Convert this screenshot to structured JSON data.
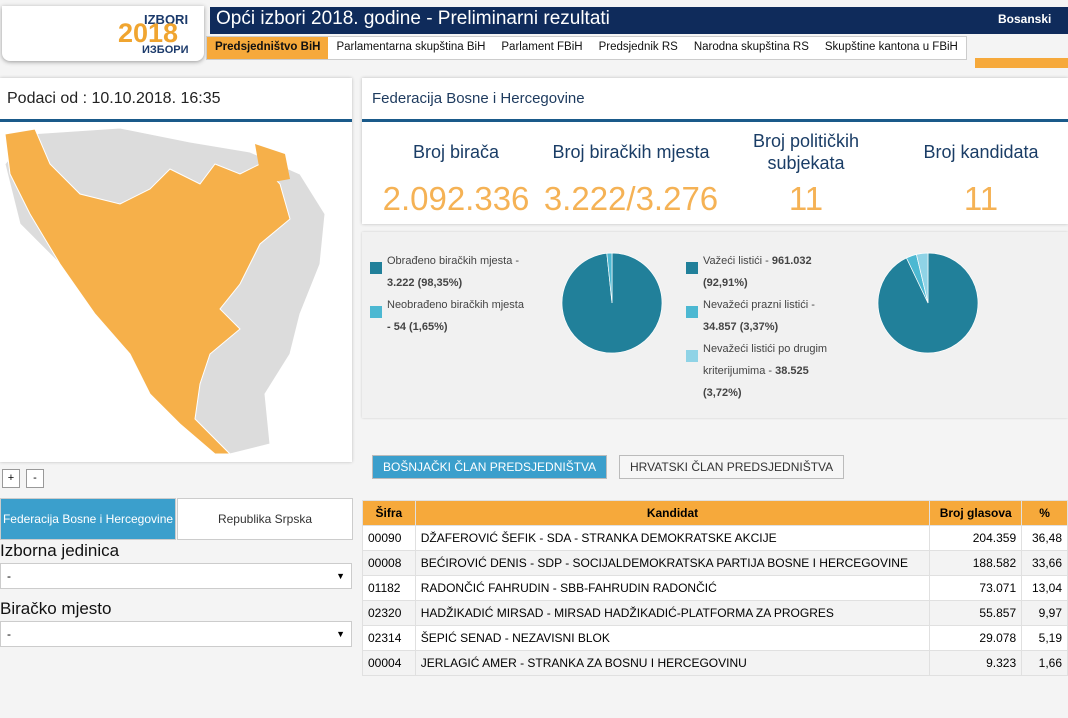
{
  "header": {
    "logo_top": "IZBORI",
    "logo_year": "2018",
    "logo_bottom": "ИЗБОРИ",
    "title": "Opći izbori 2018. godine - Preliminarni rezultati",
    "language": "Bosanski",
    "tabs": [
      "Predsjedništvo BiH",
      "Parlamentarna skupština BiH",
      "Parlament FBiH",
      "Predsjednik RS",
      "Narodna skupština RS",
      "Skupštine kantona u FBiH"
    ],
    "active_tab": 0
  },
  "sidebar": {
    "date": "Podaci od : 10.10.2018. 16:35",
    "zoom": [
      "+",
      "-"
    ],
    "entity_tabs": [
      "Federacija Bosne i Hercegovine",
      "Republika Srpska"
    ],
    "active_entity": 0,
    "fields": [
      {
        "label": "Izborna jedinica",
        "value": "-"
      },
      {
        "label": "Biračko mjesto",
        "value": "-"
      }
    ]
  },
  "summary": {
    "title": "Federacija Bosne i Hercegovine",
    "stats": [
      {
        "label": "Broj birača",
        "value": "2.092.336"
      },
      {
        "label": "Broj biračkih mjesta",
        "value": "3.222/3.276"
      },
      {
        "label": "Broj političkih subjekata",
        "value": "11"
      },
      {
        "label": "Broj kandidata",
        "value": "11"
      }
    ]
  },
  "pies": [
    {
      "slices": [
        {
          "label": "Obrađeno biračkih mjesta -",
          "value_label": "3.222 (98,35%)",
          "value": 98.35,
          "color": "#21809a"
        },
        {
          "label": "Neobrađeno biračkih mjesta",
          "value_label": "- 54 (1,65%)",
          "value": 1.65,
          "color": "#4cb8d2"
        }
      ]
    },
    {
      "slices": [
        {
          "label": "Važeći listići -",
          "value_label": "961.032 (92,91%)",
          "value": 92.91,
          "color": "#21809a"
        },
        {
          "label": "Nevažeći prazni listići -",
          "value_label": "34.857 (3,37%)",
          "value": 3.37,
          "color": "#4cb8d2"
        },
        {
          "label": "Nevažeći listići po drugim kriterijumima -",
          "value_label": "38.525 (3,72%)",
          "value": 3.72,
          "color": "#8fd3e6"
        }
      ]
    }
  ],
  "buttons": [
    "BOŠNJAČKI ČLAN PREDSJEDNIŠTVA",
    "HRVATSKI ČLAN PREDSJEDNIŠTVA"
  ],
  "table": {
    "columns": [
      "Šifra",
      "Kandidat",
      "Broj glasova",
      "%"
    ],
    "rows": [
      [
        "00090",
        "DŽAFEROVIĆ ŠEFIK - SDA - STRANKA DEMOKRATSKE AKCIJE",
        "204.359",
        "36,48"
      ],
      [
        "00008",
        "BEĆIROVIĆ DENIS - SDP - SOCIJALDEMOKRATSKA PARTIJA BOSNE I HERCEGOVINE",
        "188.582",
        "33,66"
      ],
      [
        "01182",
        "RADONČIĆ FAHRUDIN - SBB-FAHRUDIN RADONČIĆ",
        "73.071",
        "13,04"
      ],
      [
        "02320",
        "HADŽIKADIĆ MIRSAD - MIRSAD HADŽIKADIĆ-PLATFORMA ZA PROGRES",
        "55.857",
        "9,97"
      ],
      [
        "02314",
        "ŠEPIĆ SENAD - NEZAVISNI BLOK",
        "29.078",
        "5,19"
      ],
      [
        "00004",
        "JERLAGIĆ AMER - STRANKA ZA BOSNU I HERCEGOVINU",
        "9.323",
        "1,66"
      ]
    ]
  }
}
